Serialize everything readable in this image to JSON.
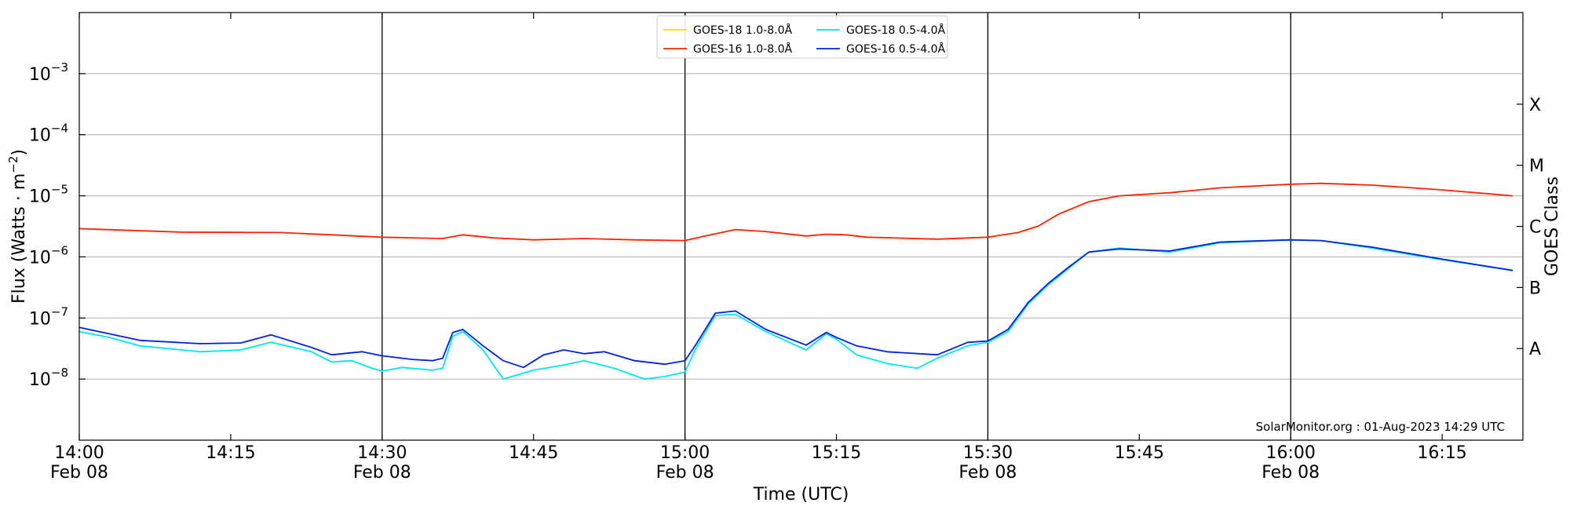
{
  "chart_data": {
    "type": "line",
    "xlabel": "Time (UTC)",
    "ylabel_main": "Flux (Watts · m",
    "ylabel_sup": "−2",
    "ylabel_close": ")",
    "y2label": "GOES Class",
    "yscale": "log",
    "ylim": [
      1e-09,
      0.01
    ],
    "y_ticks": [
      {
        "value": 1e-08,
        "base": "10",
        "exp": "−8"
      },
      {
        "value": 1e-07,
        "base": "10",
        "exp": "−7"
      },
      {
        "value": 1e-06,
        "base": "10",
        "exp": "−6"
      },
      {
        "value": 1e-05,
        "base": "10",
        "exp": "−5"
      },
      {
        "value": 0.0001,
        "base": "10",
        "exp": "−4"
      },
      {
        "value": 0.001,
        "base": "10",
        "exp": "−3"
      }
    ],
    "goes_classes": [
      {
        "label": "A",
        "value": 3.16e-08
      },
      {
        "label": "B",
        "value": 3.16e-07
      },
      {
        "label": "C",
        "value": 3.16e-06
      },
      {
        "label": "M",
        "value": 3.16e-05
      },
      {
        "label": "X",
        "value": 0.000316
      }
    ],
    "xlim": [
      "14:00",
      "16:23"
    ],
    "x_ticks": [
      {
        "time": "14:00",
        "label": "14:00",
        "date": "Feb 08"
      },
      {
        "time": "14:15",
        "label": "14:15",
        "date": ""
      },
      {
        "time": "14:30",
        "label": "14:30",
        "date": "Feb 08"
      },
      {
        "time": "14:45",
        "label": "14:45",
        "date": ""
      },
      {
        "time": "15:00",
        "label": "15:00",
        "date": "Feb 08"
      },
      {
        "time": "15:15",
        "label": "15:15",
        "date": ""
      },
      {
        "time": "15:30",
        "label": "15:30",
        "date": "Feb 08"
      },
      {
        "time": "15:45",
        "label": "15:45",
        "date": ""
      },
      {
        "time": "16:00",
        "label": "16:00",
        "date": "Feb 08"
      },
      {
        "time": "16:15",
        "label": "16:15",
        "date": ""
      }
    ],
    "vlines": [
      "14:30",
      "15:00",
      "15:30",
      "16:00"
    ],
    "grid": "horizontal",
    "legend_position": "top-center",
    "annotation": "SolarMonitor.org : 01-Aug-2023 14:29 UTC",
    "series": [
      {
        "name": "GOES-18 1.0-8.0Å",
        "color": "#ffd700",
        "points": []
      },
      {
        "name": "GOES-16 1.0-8.0Å",
        "color": "#ff2200",
        "points": [
          [
            "14:00",
            2.9e-06
          ],
          [
            "14:10",
            2.55e-06
          ],
          [
            "14:20",
            2.5e-06
          ],
          [
            "14:25",
            2.3e-06
          ],
          [
            "14:30",
            2.1e-06
          ],
          [
            "14:36",
            2e-06
          ],
          [
            "14:38",
            2.3e-06
          ],
          [
            "14:41",
            2.05e-06
          ],
          [
            "14:45",
            1.9e-06
          ],
          [
            "14:50",
            2e-06
          ],
          [
            "14:55",
            1.9e-06
          ],
          [
            "15:00",
            1.85e-06
          ],
          [
            "15:02",
            2.2e-06
          ],
          [
            "15:05",
            2.8e-06
          ],
          [
            "15:08",
            2.6e-06
          ],
          [
            "15:12",
            2.2e-06
          ],
          [
            "15:14",
            2.35e-06
          ],
          [
            "15:16",
            2.3e-06
          ],
          [
            "15:18",
            2.1e-06
          ],
          [
            "15:25",
            1.95e-06
          ],
          [
            "15:30",
            2.1e-06
          ],
          [
            "15:33",
            2.5e-06
          ],
          [
            "15:35",
            3.2e-06
          ],
          [
            "15:37",
            5e-06
          ],
          [
            "15:40",
            8e-06
          ],
          [
            "15:43",
            1e-05
          ],
          [
            "15:48",
            1.12e-05
          ],
          [
            "15:53",
            1.35e-05
          ],
          [
            "16:00",
            1.55e-05
          ],
          [
            "16:03",
            1.6e-05
          ],
          [
            "16:08",
            1.5e-05
          ],
          [
            "16:15",
            1.25e-05
          ],
          [
            "16:22",
            1e-05
          ]
        ]
      },
      {
        "name": "GOES-18 0.5-4.0Å",
        "color": "#00e5ee",
        "points": [
          [
            "14:00",
            6e-08
          ],
          [
            "14:03",
            4.8e-08
          ],
          [
            "14:06",
            3.5e-08
          ],
          [
            "14:12",
            2.8e-08
          ],
          [
            "14:16",
            3e-08
          ],
          [
            "14:19",
            4e-08
          ],
          [
            "14:23",
            2.8e-08
          ],
          [
            "14:25",
            1.9e-08
          ],
          [
            "14:27",
            2e-08
          ],
          [
            "14:29",
            1.5e-08
          ],
          [
            "14:30",
            1.35e-08
          ],
          [
            "14:32",
            1.55e-08
          ],
          [
            "14:35",
            1.4e-08
          ],
          [
            "14:36",
            1.5e-08
          ],
          [
            "14:37",
            5e-08
          ],
          [
            "14:38",
            6e-08
          ],
          [
            "14:40",
            3e-08
          ],
          [
            "14:42",
            1e-08
          ],
          [
            "14:45",
            1.4e-08
          ],
          [
            "14:48",
            1.7e-08
          ],
          [
            "14:50",
            2e-08
          ],
          [
            "14:53",
            1.5e-08
          ],
          [
            "14:56",
            1e-08
          ],
          [
            "14:58",
            1.1e-08
          ],
          [
            "15:00",
            1.3e-08
          ],
          [
            "15:01",
            3e-08
          ],
          [
            "15:03",
            1.1e-07
          ],
          [
            "15:05",
            1.15e-07
          ],
          [
            "15:08",
            6e-08
          ],
          [
            "15:12",
            3e-08
          ],
          [
            "15:14",
            5.5e-08
          ],
          [
            "15:15",
            4.5e-08
          ],
          [
            "15:17",
            2.5e-08
          ],
          [
            "15:20",
            1.8e-08
          ],
          [
            "15:23",
            1.5e-08
          ],
          [
            "15:25",
            2.2e-08
          ],
          [
            "15:28",
            3.5e-08
          ],
          [
            "15:30",
            4e-08
          ],
          [
            "15:32",
            6e-08
          ],
          [
            "15:34",
            1.7e-07
          ],
          [
            "15:36",
            3.5e-07
          ],
          [
            "15:38",
            6.5e-07
          ],
          [
            "15:40",
            1.2e-06
          ],
          [
            "15:43",
            1.4e-06
          ],
          [
            "15:48",
            1.2e-06
          ],
          [
            "15:53",
            1.7e-06
          ],
          [
            "16:00",
            1.9e-06
          ],
          [
            "16:03",
            1.85e-06
          ],
          [
            "16:08",
            1.4e-06
          ],
          [
            "16:15",
            9e-07
          ],
          [
            "16:22",
            6e-07
          ]
        ]
      },
      {
        "name": "GOES-16 0.5-4.0Å",
        "color": "#0022dd",
        "points": [
          [
            "14:00",
            7e-08
          ],
          [
            "14:03",
            5.5e-08
          ],
          [
            "14:06",
            4.3e-08
          ],
          [
            "14:12",
            3.8e-08
          ],
          [
            "14:16",
            3.9e-08
          ],
          [
            "14:19",
            5.3e-08
          ],
          [
            "14:23",
            3.3e-08
          ],
          [
            "14:25",
            2.5e-08
          ],
          [
            "14:28",
            2.8e-08
          ],
          [
            "14:30",
            2.4e-08
          ],
          [
            "14:33",
            2.1e-08
          ],
          [
            "14:35",
            2e-08
          ],
          [
            "14:36",
            2.2e-08
          ],
          [
            "14:37",
            5.8e-08
          ],
          [
            "14:38",
            6.5e-08
          ],
          [
            "14:40",
            3.5e-08
          ],
          [
            "14:42",
            2e-08
          ],
          [
            "14:44",
            1.55e-08
          ],
          [
            "14:46",
            2.5e-08
          ],
          [
            "14:48",
            3e-08
          ],
          [
            "14:50",
            2.6e-08
          ],
          [
            "14:52",
            2.8e-08
          ],
          [
            "14:55",
            2e-08
          ],
          [
            "14:58",
            1.75e-08
          ],
          [
            "15:00",
            2e-08
          ],
          [
            "15:01",
            3.5e-08
          ],
          [
            "15:03",
            1.2e-07
          ],
          [
            "15:05",
            1.3e-07
          ],
          [
            "15:08",
            6.5e-08
          ],
          [
            "15:12",
            3.6e-08
          ],
          [
            "15:14",
            5.8e-08
          ],
          [
            "15:15",
            4.8e-08
          ],
          [
            "15:17",
            3.5e-08
          ],
          [
            "15:20",
            2.8e-08
          ],
          [
            "15:25",
            2.5e-08
          ],
          [
            "15:28",
            4e-08
          ],
          [
            "15:30",
            4.2e-08
          ],
          [
            "15:32",
            6.5e-08
          ],
          [
            "15:34",
            1.8e-07
          ],
          [
            "15:36",
            3.7e-07
          ],
          [
            "15:38",
            6.8e-07
          ],
          [
            "15:40",
            1.2e-06
          ],
          [
            "15:43",
            1.35e-06
          ],
          [
            "15:48",
            1.25e-06
          ],
          [
            "15:53",
            1.75e-06
          ],
          [
            "16:00",
            1.9e-06
          ],
          [
            "16:03",
            1.85e-06
          ],
          [
            "16:08",
            1.45e-06
          ],
          [
            "16:15",
            9.2e-07
          ],
          [
            "16:22",
            6e-07
          ]
        ]
      }
    ]
  }
}
